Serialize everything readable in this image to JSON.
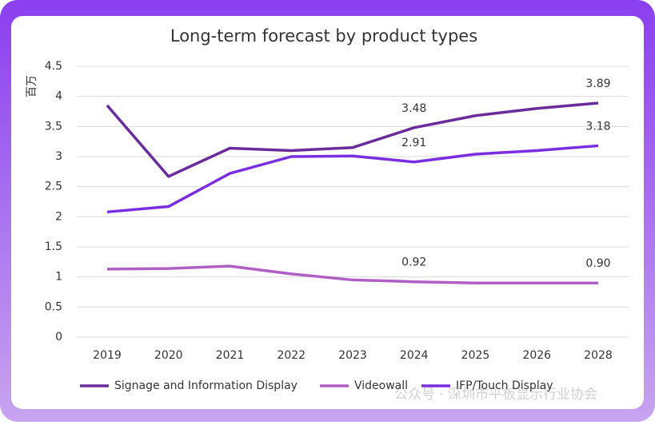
{
  "chart_data": {
    "type": "line",
    "title": "Long-term forecast by product types",
    "y_label": "百万",
    "categories": [
      "2019",
      "2020",
      "2021",
      "2022",
      "2023",
      "2024",
      "2025",
      "2026",
      "2028"
    ],
    "ylim": [
      0,
      4.5
    ],
    "yticks": [
      0,
      0.5,
      1,
      1.5,
      2,
      2.5,
      3,
      3.5,
      4,
      4.5
    ],
    "grid": true,
    "series": [
      {
        "name": "Signage and Information Display",
        "color": "#6a2c9a",
        "values": [
          3.85,
          2.67,
          3.14,
          3.1,
          3.15,
          3.48,
          3.68,
          3.8,
          3.89
        ],
        "value_labels": [
          null,
          null,
          null,
          null,
          null,
          "3.48",
          null,
          null,
          "3.89"
        ]
      },
      {
        "name": "Videowall",
        "color": "#b060c4",
        "values": [
          1.13,
          1.14,
          1.18,
          1.05,
          0.95,
          0.92,
          0.9,
          0.9,
          0.9
        ],
        "value_labels": [
          null,
          null,
          null,
          null,
          null,
          "0.92",
          null,
          null,
          "0.90"
        ]
      },
      {
        "name": "IFP/Touch Display",
        "color": "#7a2ee0",
        "values": [
          2.08,
          2.17,
          2.72,
          3.0,
          3.01,
          2.91,
          3.04,
          3.1,
          3.18
        ],
        "value_labels": [
          null,
          null,
          null,
          null,
          null,
          "2.91",
          null,
          null,
          "3.18"
        ]
      }
    ],
    "legend": "bottom",
    "watermark": "公众号 · 深圳市平板显示行业协会"
  }
}
